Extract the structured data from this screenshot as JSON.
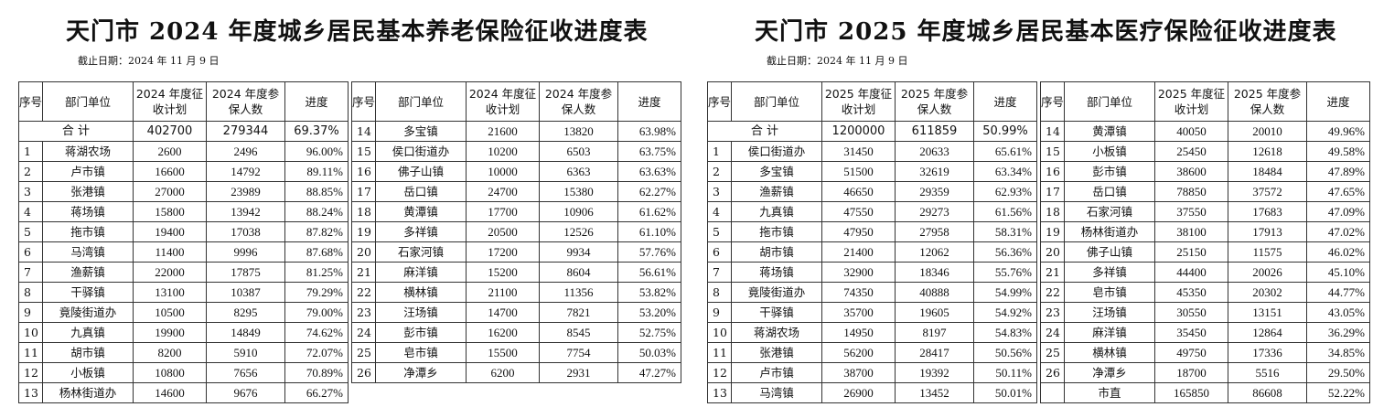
{
  "pension": {
    "title": "天门市 2024 年度城乡居民基本养老保险征收进度表",
    "date": "截止日期：2024 年 11 月 9 日",
    "headers": {
      "idx": "序号",
      "unit": "部门单位",
      "plan": "2024 年度征收计划",
      "insured": "2024 年度参保人数",
      "progress": "进度"
    },
    "total": {
      "label": "合 计",
      "plan": "402700",
      "insured": "279344",
      "progress": "69.37%"
    },
    "left_rows": [
      [
        "1",
        "蒋湖农场",
        "2600",
        "2496",
        "96.00%"
      ],
      [
        "2",
        "卢市镇",
        "16600",
        "14792",
        "89.11%"
      ],
      [
        "3",
        "张港镇",
        "27000",
        "23989",
        "88.85%"
      ],
      [
        "4",
        "蒋场镇",
        "15800",
        "13942",
        "88.24%"
      ],
      [
        "5",
        "拖市镇",
        "19400",
        "17038",
        "87.82%"
      ],
      [
        "6",
        "马湾镇",
        "11400",
        "9996",
        "87.68%"
      ],
      [
        "7",
        "渔薪镇",
        "22000",
        "17875",
        "81.25%"
      ],
      [
        "8",
        "干驿镇",
        "13100",
        "10387",
        "79.29%"
      ],
      [
        "9",
        "竟陵街道办",
        "10500",
        "8295",
        "79.00%"
      ],
      [
        "10",
        "九真镇",
        "19900",
        "14849",
        "74.62%"
      ],
      [
        "11",
        "胡市镇",
        "8200",
        "5910",
        "72.07%"
      ],
      [
        "12",
        "小板镇",
        "10800",
        "7656",
        "70.89%"
      ],
      [
        "13",
        "杨林街道办",
        "14600",
        "9676",
        "66.27%"
      ]
    ],
    "right_rows": [
      [
        "14",
        "多宝镇",
        "21600",
        "13820",
        "63.98%"
      ],
      [
        "15",
        "侯口街道办",
        "10200",
        "6503",
        "63.75%"
      ],
      [
        "16",
        "佛子山镇",
        "10000",
        "6363",
        "63.63%"
      ],
      [
        "17",
        "岳口镇",
        "24700",
        "15380",
        "62.27%"
      ],
      [
        "18",
        "黄潭镇",
        "17700",
        "10906",
        "61.62%"
      ],
      [
        "19",
        "多祥镇",
        "20500",
        "12526",
        "61.10%"
      ],
      [
        "20",
        "石家河镇",
        "17200",
        "9934",
        "57.76%"
      ],
      [
        "21",
        "麻洋镇",
        "15200",
        "8604",
        "56.61%"
      ],
      [
        "22",
        "横林镇",
        "21100",
        "11356",
        "53.82%"
      ],
      [
        "23",
        "汪场镇",
        "14700",
        "7821",
        "53.20%"
      ],
      [
        "24",
        "彭市镇",
        "16200",
        "8545",
        "52.75%"
      ],
      [
        "25",
        "皂市镇",
        "15500",
        "7754",
        "50.03%"
      ],
      [
        "26",
        "净潭乡",
        "6200",
        "2931",
        "47.27%"
      ]
    ]
  },
  "medical": {
    "title": "天门市 2025 年度城乡居民基本医疗保险征收进度表",
    "date": "截止日期：2024 年 11 月 9 日",
    "headers": {
      "idx": "序号",
      "unit": "部门单位",
      "plan": "2025 年度征收计划",
      "insured": "2025 年度参保人数",
      "progress": "进度"
    },
    "total": {
      "label": "合 计",
      "plan": "1200000",
      "insured": "611859",
      "progress": "50.99%"
    },
    "left_rows": [
      [
        "1",
        "侯口街道办",
        "31450",
        "20633",
        "65.61%"
      ],
      [
        "2",
        "多宝镇",
        "51500",
        "32619",
        "63.34%"
      ],
      [
        "3",
        "渔薪镇",
        "46650",
        "29359",
        "62.93%"
      ],
      [
        "4",
        "九真镇",
        "47550",
        "29273",
        "61.56%"
      ],
      [
        "5",
        "拖市镇",
        "47950",
        "27958",
        "58.31%"
      ],
      [
        "6",
        "胡市镇",
        "21400",
        "12062",
        "56.36%"
      ],
      [
        "7",
        "蒋场镇",
        "32900",
        "18346",
        "55.76%"
      ],
      [
        "8",
        "竟陵街道办",
        "74350",
        "40888",
        "54.99%"
      ],
      [
        "9",
        "干驿镇",
        "35700",
        "19605",
        "54.92%"
      ],
      [
        "10",
        "蒋湖农场",
        "14950",
        "8197",
        "54.83%"
      ],
      [
        "11",
        "张港镇",
        "56200",
        "28417",
        "50.56%"
      ],
      [
        "12",
        "卢市镇",
        "38700",
        "19392",
        "50.11%"
      ],
      [
        "13",
        "马湾镇",
        "26900",
        "13452",
        "50.01%"
      ]
    ],
    "right_rows": [
      [
        "14",
        "黄潭镇",
        "40050",
        "20010",
        "49.96%"
      ],
      [
        "15",
        "小板镇",
        "25450",
        "12618",
        "49.58%"
      ],
      [
        "16",
        "彭市镇",
        "38600",
        "18484",
        "47.89%"
      ],
      [
        "17",
        "岳口镇",
        "78850",
        "37572",
        "47.65%"
      ],
      [
        "18",
        "石家河镇",
        "37550",
        "17683",
        "47.09%"
      ],
      [
        "19",
        "杨林街道办",
        "38100",
        "17913",
        "47.02%"
      ],
      [
        "20",
        "佛子山镇",
        "25150",
        "11575",
        "46.02%"
      ],
      [
        "21",
        "多祥镇",
        "44400",
        "20026",
        "45.10%"
      ],
      [
        "22",
        "皂市镇",
        "45350",
        "20302",
        "44.77%"
      ],
      [
        "23",
        "汪场镇",
        "30550",
        "13151",
        "43.05%"
      ],
      [
        "24",
        "麻洋镇",
        "35450",
        "12864",
        "36.29%"
      ],
      [
        "25",
        "横林镇",
        "49750",
        "17336",
        "34.85%"
      ],
      [
        "26",
        "净潭乡",
        "18700",
        "5516",
        "29.50%"
      ],
      [
        "",
        "市直",
        "165850",
        "86608",
        "52.22%"
      ]
    ]
  }
}
